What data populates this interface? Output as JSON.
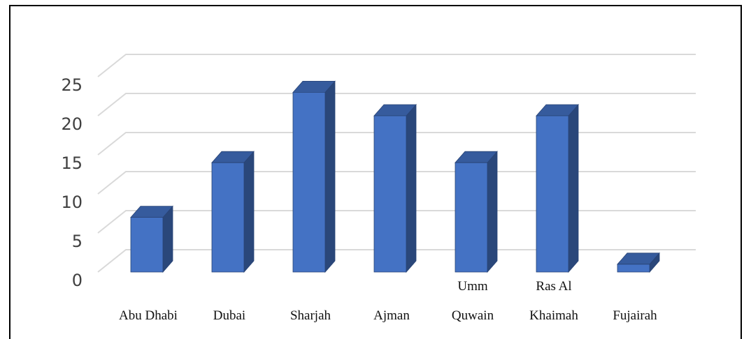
{
  "chart_data": {
    "type": "bar3d",
    "categories": [
      "Abu Dhabi",
      "Dubai",
      "Sharjah",
      "Ajman",
      "Umm\nQuwain",
      "Ras Al\nKhaimah",
      "Fujairah"
    ],
    "values": [
      7,
      14,
      23,
      20,
      14,
      20,
      1
    ],
    "color": "#4472c4",
    "ylim": [
      0,
      25
    ],
    "yticks": [
      0,
      5,
      10,
      15,
      20,
      25
    ],
    "grid": true
  }
}
